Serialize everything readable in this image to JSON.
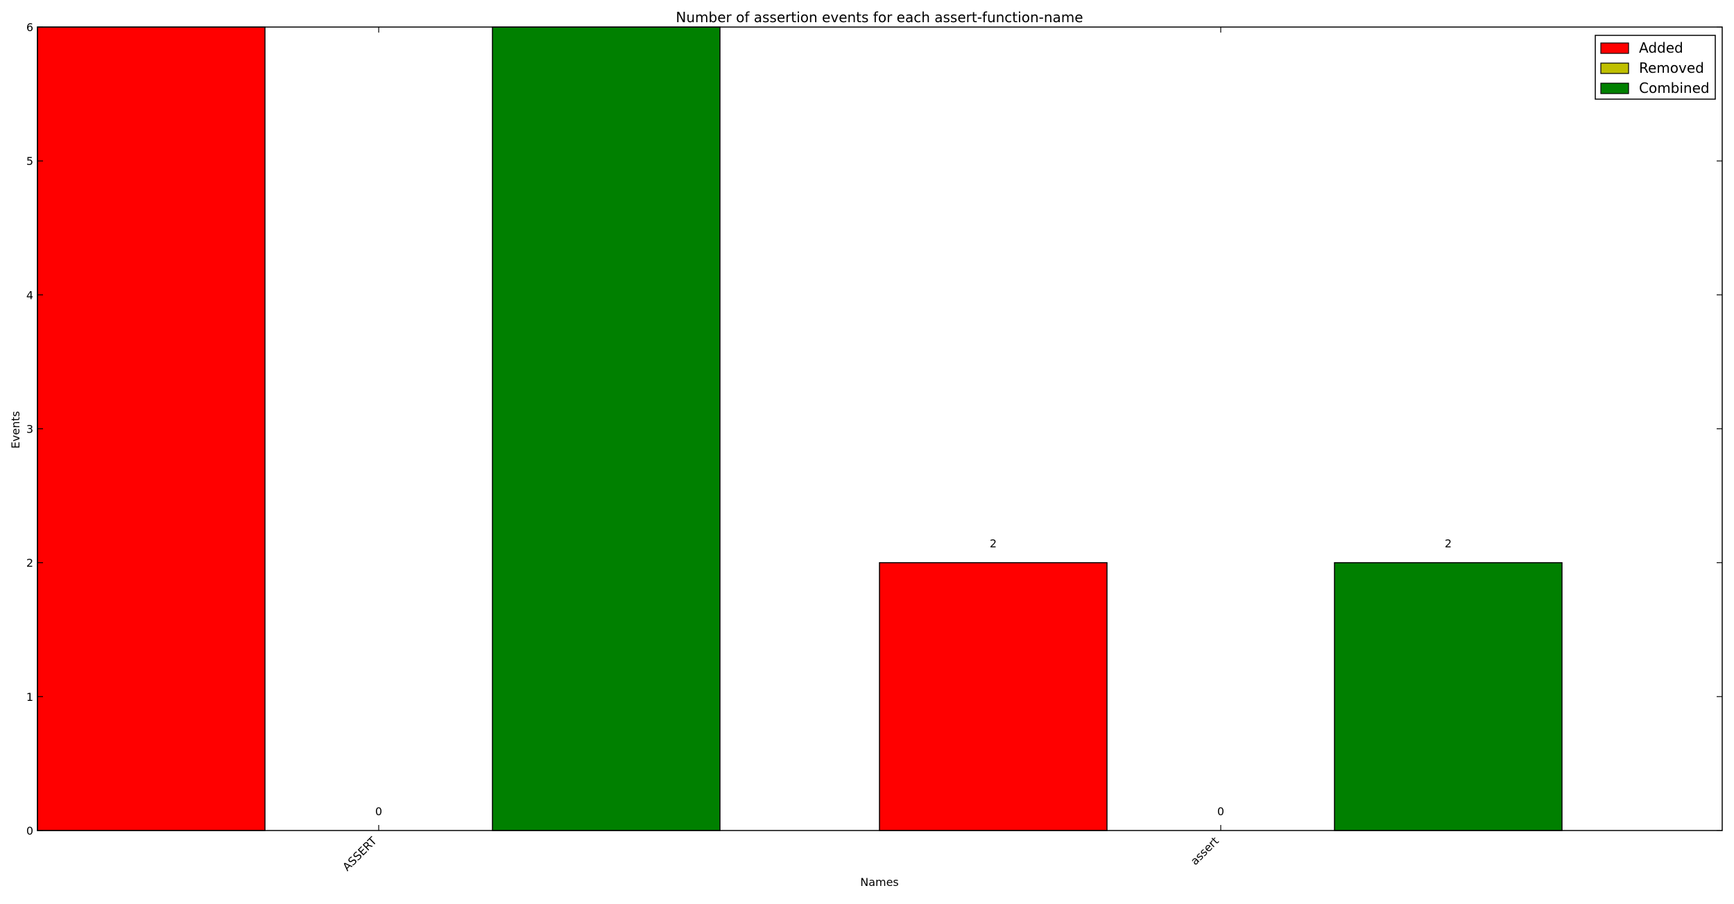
{
  "chart_data": {
    "type": "bar",
    "title": "Number of assertion events for each assert-function-name",
    "xlabel": "Names",
    "ylabel": "Events",
    "categories": [
      "ASSERT",
      "assert"
    ],
    "ylim": [
      0,
      6
    ],
    "yticks": [
      "0",
      "1",
      "2",
      "3",
      "4",
      "5",
      "6"
    ],
    "series": [
      {
        "name": "Added",
        "values": [
          6,
          2
        ],
        "color": "#ff0000",
        "labels": [
          "",
          "2"
        ]
      },
      {
        "name": "Removed",
        "values": [
          0,
          0
        ],
        "color": "#bfbf00",
        "labels": [
          "0",
          "0"
        ]
      },
      {
        "name": "Combined",
        "values": [
          6,
          2
        ],
        "color": "#008000",
        "labels": [
          "",
          "2"
        ]
      }
    ],
    "legend_position": "top-right",
    "grid": false
  }
}
